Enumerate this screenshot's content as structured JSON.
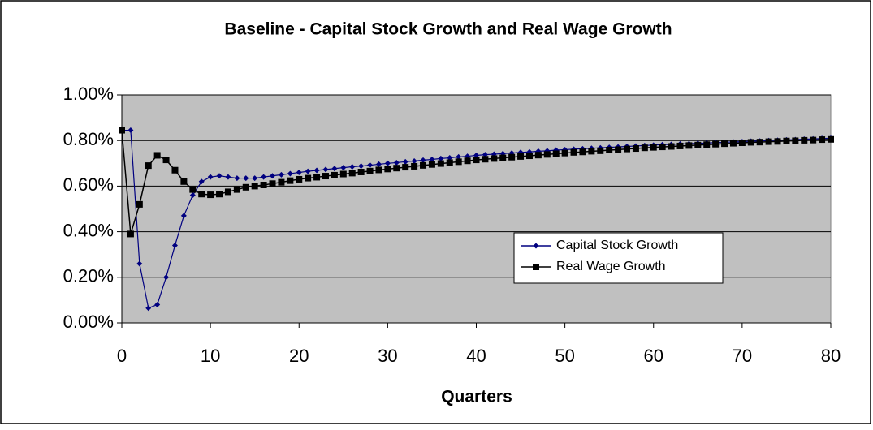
{
  "chart_data": {
    "type": "line",
    "title": "Baseline - Capital Stock Growth and Real Wage Growth",
    "x_label": "Quarters",
    "x": [
      0,
      1,
      2,
      3,
      4,
      5,
      6,
      7,
      8,
      9,
      10,
      11,
      12,
      13,
      14,
      15,
      16,
      17,
      18,
      19,
      20,
      21,
      22,
      23,
      24,
      25,
      26,
      27,
      28,
      29,
      30,
      31,
      32,
      33,
      34,
      35,
      36,
      37,
      38,
      39,
      40,
      41,
      42,
      43,
      44,
      45,
      46,
      47,
      48,
      49,
      50,
      51,
      52,
      53,
      54,
      55,
      56,
      57,
      58,
      59,
      60,
      61,
      62,
      63,
      64,
      65,
      66,
      67,
      68,
      69,
      70,
      71,
      72,
      73,
      74,
      75,
      76,
      77,
      78,
      79,
      80
    ],
    "series": [
      {
        "name": "Capital Stock Growth",
        "color": "#000080",
        "marker": "diamond",
        "values": [
          0.845,
          0.845,
          0.26,
          0.065,
          0.08,
          0.2,
          0.34,
          0.47,
          0.56,
          0.62,
          0.64,
          0.645,
          0.64,
          0.635,
          0.635,
          0.635,
          0.64,
          0.645,
          0.65,
          0.655,
          0.66,
          0.665,
          0.669,
          0.673,
          0.677,
          0.681,
          0.685,
          0.688,
          0.692,
          0.696,
          0.7,
          0.703,
          0.707,
          0.71,
          0.714,
          0.717,
          0.721,
          0.724,
          0.728,
          0.731,
          0.735,
          0.738,
          0.74,
          0.743,
          0.745,
          0.748,
          0.75,
          0.753,
          0.755,
          0.758,
          0.76,
          0.762,
          0.764,
          0.766,
          0.768,
          0.77,
          0.772,
          0.774,
          0.776,
          0.778,
          0.78,
          0.782,
          0.783,
          0.785,
          0.786,
          0.788,
          0.789,
          0.791,
          0.792,
          0.794,
          0.795,
          0.797,
          0.798,
          0.8,
          0.801,
          0.803,
          0.804,
          0.806,
          0.807,
          0.809,
          0.81
        ]
      },
      {
        "name": "Real Wage Growth",
        "color": "#000000",
        "marker": "square",
        "values": [
          0.845,
          0.39,
          0.52,
          0.69,
          0.735,
          0.715,
          0.67,
          0.62,
          0.585,
          0.565,
          0.562,
          0.565,
          0.575,
          0.585,
          0.595,
          0.6,
          0.605,
          0.611,
          0.617,
          0.624,
          0.63,
          0.635,
          0.639,
          0.644,
          0.648,
          0.653,
          0.657,
          0.662,
          0.666,
          0.671,
          0.675,
          0.679,
          0.683,
          0.687,
          0.691,
          0.695,
          0.699,
          0.703,
          0.707,
          0.711,
          0.715,
          0.718,
          0.721,
          0.724,
          0.727,
          0.73,
          0.733,
          0.736,
          0.739,
          0.742,
          0.745,
          0.748,
          0.75,
          0.753,
          0.755,
          0.758,
          0.76,
          0.763,
          0.765,
          0.768,
          0.77,
          0.772,
          0.774,
          0.776,
          0.778,
          0.78,
          0.782,
          0.784,
          0.786,
          0.788,
          0.79,
          0.792,
          0.793,
          0.795,
          0.796,
          0.798,
          0.799,
          0.801,
          0.802,
          0.804,
          0.805
        ]
      }
    ],
    "xlim": [
      0,
      80
    ],
    "xticks": [
      0,
      10,
      20,
      30,
      40,
      50,
      60,
      70,
      80
    ],
    "ylim": [
      0,
      1
    ],
    "yticks": [
      {
        "value": 0,
        "label": "0.00%"
      },
      {
        "value": 0.2,
        "label": "0.20%"
      },
      {
        "value": 0.4,
        "label": "0.40%"
      },
      {
        "value": 0.6,
        "label": "0.60%"
      },
      {
        "value": 0.8,
        "label": "0.80%"
      },
      {
        "value": 1,
        "label": "1.00%"
      }
    ],
    "grid": true,
    "legend": "center right"
  }
}
